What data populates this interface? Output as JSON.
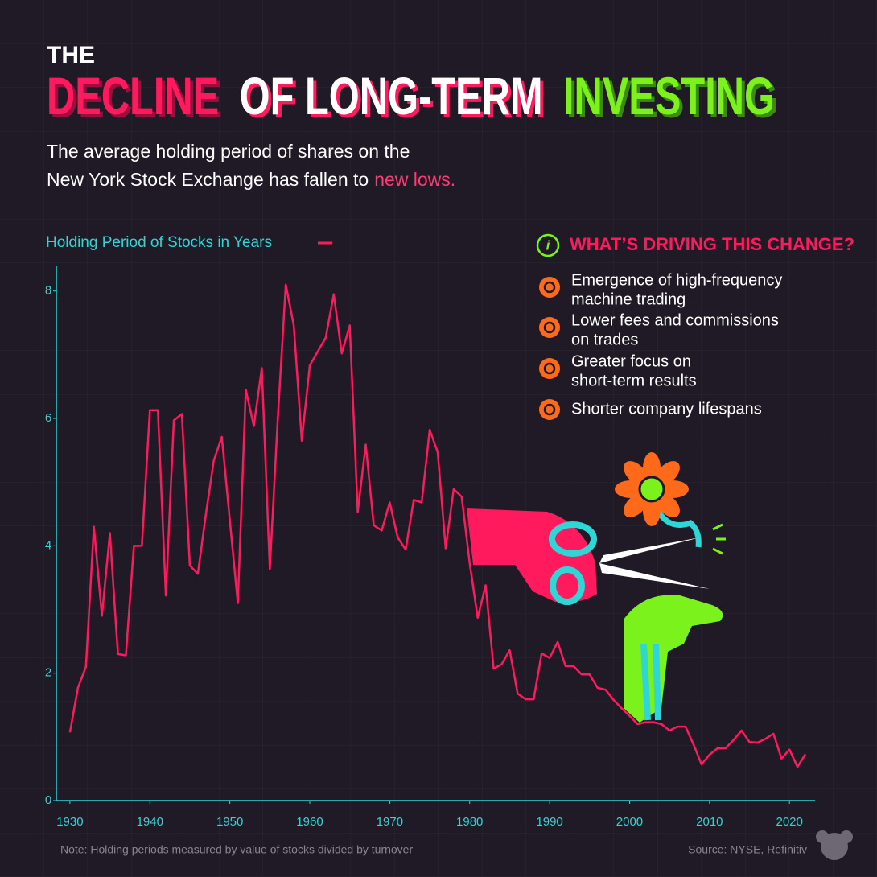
{
  "chart_data": {
    "type": "line",
    "title": [
      "THE",
      "DECLINE",
      "OF LONG-TERM",
      "INVESTING"
    ],
    "subtitle": [
      "The average holding period of shares on the",
      "New York Stock Exchange has fallen to",
      "new lows."
    ],
    "x": [
      1930,
      1931,
      1932,
      1933,
      1934,
      1935,
      1936,
      1937,
      1938,
      1939,
      1940,
      1941,
      1942,
      1943,
      1944,
      1945,
      1946,
      1947,
      1948,
      1949,
      1950,
      1951,
      1952,
      1953,
      1954,
      1955,
      1956,
      1957,
      1958,
      1959,
      1960,
      1961,
      1962,
      1963,
      1964,
      1965,
      1966,
      1967,
      1968,
      1969,
      1970,
      1971,
      1972,
      1973,
      1974,
      1975,
      1976,
      1977,
      1978,
      1979,
      1980,
      1981,
      1982,
      1983,
      1984,
      1985,
      1986,
      1987,
      1988,
      1989,
      1990,
      1991,
      1992,
      1993,
      1994,
      1995,
      1996,
      1997,
      1998,
      1999,
      2000,
      2001,
      2002,
      2003,
      2004,
      2005,
      2006,
      2007,
      2008,
      2009,
      2010,
      2011,
      2012,
      2013,
      2014,
      2015,
      2016,
      2017,
      2018,
      2019,
      2020,
      2021,
      2022
    ],
    "series": [
      {
        "name": "Holding Period of Stocks in Years",
        "color": "#ff1a5e",
        "values": [
          1.07,
          1.77,
          2.1,
          4.3,
          2.9,
          4.2,
          2.3,
          2.28,
          4.0,
          4.0,
          6.13,
          6.13,
          3.22,
          5.97,
          6.07,
          3.69,
          3.56,
          4.49,
          5.34,
          5.71,
          4.4,
          3.1,
          6.45,
          5.88,
          6.79,
          3.63,
          6.0,
          8.1,
          7.46,
          5.65,
          6.83,
          7.05,
          7.27,
          7.95,
          7.02,
          7.46,
          4.53,
          5.59,
          4.32,
          4.24,
          4.68,
          4.13,
          3.94,
          4.72,
          4.68,
          5.82,
          5.47,
          3.96,
          4.89,
          4.77,
          3.73,
          2.87,
          3.38,
          2.07,
          2.14,
          2.36,
          1.68,
          1.59,
          1.59,
          2.31,
          2.24,
          2.49,
          2.11,
          2.11,
          1.98,
          1.98,
          1.77,
          1.74,
          1.58,
          1.45,
          1.33,
          1.2,
          1.23,
          1.23,
          1.2,
          1.1,
          1.16,
          1.16,
          0.88,
          0.57,
          0.72,
          0.82,
          0.82,
          0.95,
          1.1,
          0.92,
          0.91,
          0.97,
          1.05,
          0.66,
          0.8,
          0.53,
          0.73
        ]
      }
    ],
    "xlim": [
      1928.3,
      2023.2
    ],
    "xticks": [
      1930,
      1940,
      1950,
      1960,
      1970,
      1980,
      1990,
      2000,
      2010,
      2020
    ],
    "ylim": [
      0,
      8.4
    ],
    "yticks": [
      0,
      2,
      4,
      6,
      8
    ],
    "sidebar": {
      "icon_label": "i",
      "heading": "WHAT’S DRIVING THIS CHANGE?",
      "items": [
        [
          "Emergence of high-frequency",
          "machine trading"
        ],
        [
          "Lower fees and commissions",
          "on trades"
        ],
        [
          "Greater focus on",
          "short-term results"
        ],
        [
          "Shorter company lifespans"
        ]
      ]
    },
    "note": "Note: Holding periods measured by value of stocks divided by turnover",
    "source": "Source: NYSE, Refinitiv"
  }
}
